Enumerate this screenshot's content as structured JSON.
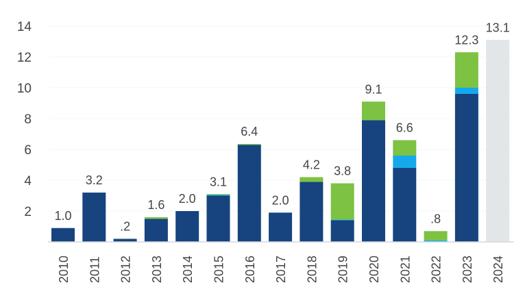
{
  "chart_data": {
    "type": "bar",
    "stacked": true,
    "title": "",
    "xlabel": "",
    "ylabel": "",
    "ylim": [
      0,
      14
    ],
    "yticks": [
      2,
      4,
      6,
      8,
      10,
      12,
      14
    ],
    "ytick_labels": [
      "2",
      "4",
      "6",
      "8",
      "10",
      "12",
      "14"
    ],
    "grid": true,
    "legend": "none",
    "categories": [
      "2010",
      "2011",
      "2012",
      "2013",
      "2014",
      "2015",
      "2016",
      "2017",
      "2018",
      "2019",
      "2020",
      "2021",
      "2022",
      "2023",
      "2024"
    ],
    "series": [
      {
        "color": "#17447f",
        "values": [
          0.9,
          3.2,
          0.2,
          1.5,
          2.0,
          3.0,
          6.3,
          1.9,
          3.9,
          1.4,
          7.9,
          4.8,
          0.0,
          9.6,
          0
        ]
      },
      {
        "color": "#15a9ec",
        "values": [
          0,
          0,
          0,
          0,
          0,
          0.05,
          0,
          0,
          0,
          0.05,
          0,
          0.8,
          0.1,
          0.4,
          0
        ]
      },
      {
        "color": "#7dc242",
        "values": [
          0,
          0,
          0,
          0.1,
          0,
          0.05,
          0.05,
          0,
          0.3,
          2.35,
          1.2,
          1.0,
          0.6,
          2.3,
          0
        ]
      },
      {
        "color": "#e3e6e9",
        "values": [
          0,
          0,
          0,
          0,
          0,
          0,
          0,
          0,
          0,
          0,
          0,
          0,
          0,
          0,
          13.1
        ]
      }
    ],
    "data_labels": [
      "1.0",
      "3.2",
      ".2",
      "1.6",
      "2.0",
      "3.1",
      "6.4",
      "2.0",
      "4.2",
      "3.8",
      "9.1",
      "6.6",
      ".8",
      "12.3",
      "13.1"
    ]
  }
}
